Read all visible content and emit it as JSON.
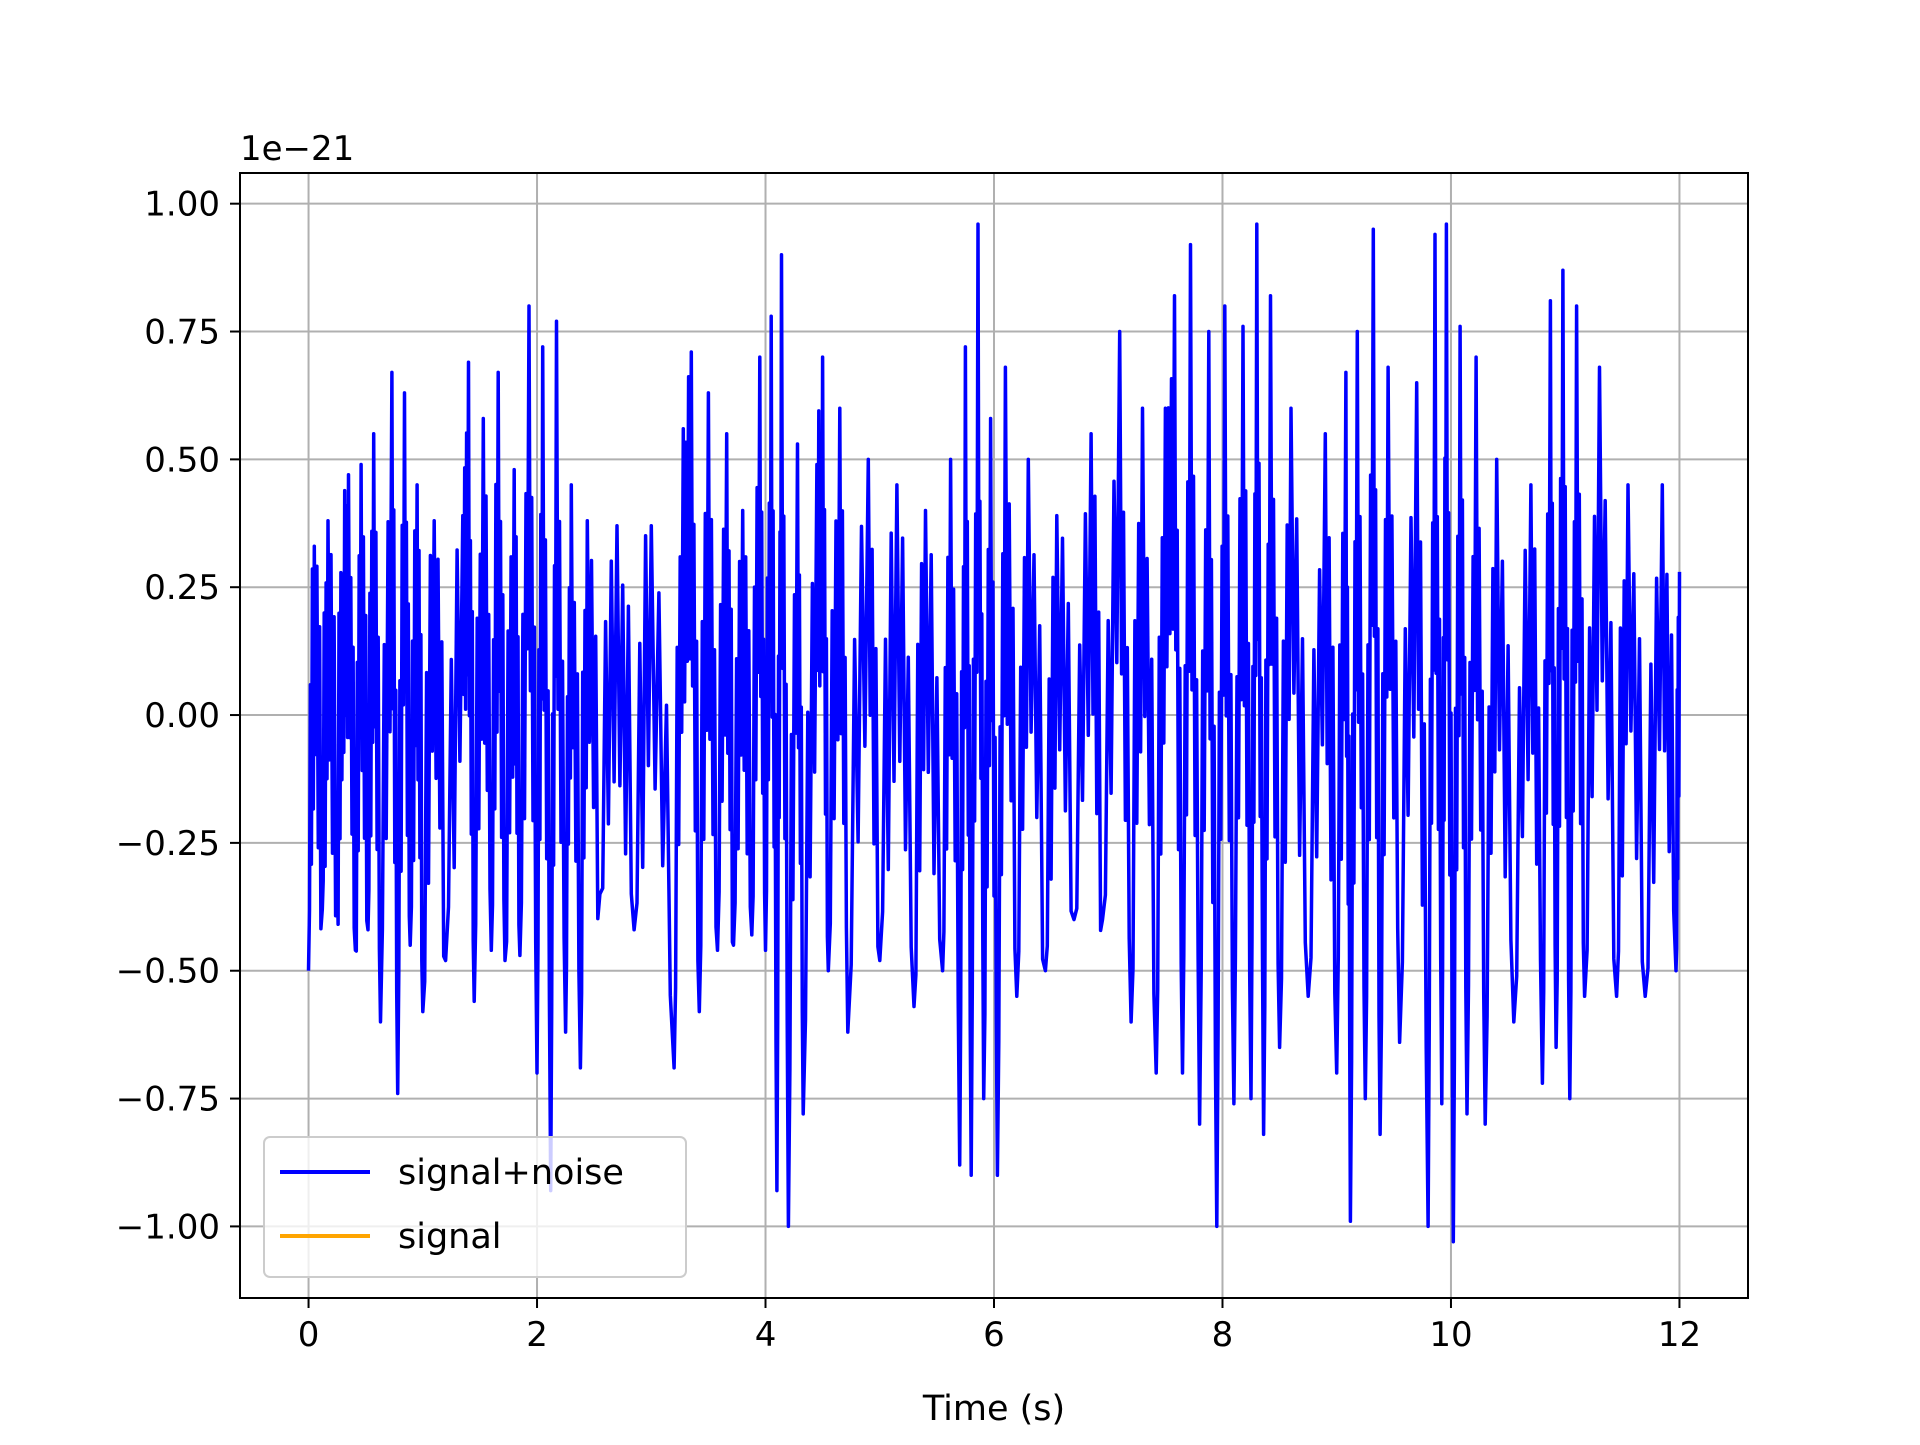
{
  "chart_data": {
    "type": "line",
    "title": "",
    "xlabel": "Time (s)",
    "ylabel": "",
    "y_scale_label": "1e−21",
    "xlim": [
      -0.6,
      12.6
    ],
    "ylim": [
      -1.14,
      1.06
    ],
    "x_ticks": [
      0,
      2,
      4,
      6,
      8,
      10,
      12
    ],
    "x_tick_labels": [
      "0",
      "2",
      "4",
      "6",
      "8",
      "10",
      "12"
    ],
    "y_ticks": [
      1.0,
      0.75,
      0.5,
      0.25,
      0.0,
      -0.25,
      -0.5,
      -0.75,
      -1.0
    ],
    "y_tick_labels": [
      "1.00",
      "0.75",
      "0.50",
      "0.25",
      "0.00",
      "−0.25",
      "−0.50",
      "−0.75",
      "−1.00"
    ],
    "grid": true,
    "legend_position": "lower-left",
    "duration": 12,
    "series": [
      {
        "name": "signal+noise",
        "color": "#0000ff",
        "peaks": [
          [
            0.0,
            -0.5
          ],
          [
            0.05,
            0.33
          ],
          [
            0.12,
            -0.38
          ],
          [
            0.17,
            0.38
          ],
          [
            0.25,
            -0.29
          ],
          [
            0.3,
            0.25
          ],
          [
            0.35,
            0.47
          ],
          [
            0.41,
            -0.46
          ],
          [
            0.46,
            0.49
          ],
          [
            0.52,
            -0.42
          ],
          [
            0.57,
            0.55
          ],
          [
            0.63,
            -0.6
          ],
          [
            0.73,
            0.67
          ],
          [
            0.78,
            -0.74
          ],
          [
            0.84,
            0.63
          ],
          [
            0.89,
            -0.45
          ],
          [
            0.95,
            0.45
          ],
          [
            1.0,
            -0.58
          ],
          [
            1.1,
            0.38
          ],
          [
            1.2,
            -0.48
          ],
          [
            1.35,
            0.39
          ],
          [
            1.4,
            0.69
          ],
          [
            1.45,
            -0.56
          ],
          [
            1.53,
            0.58
          ],
          [
            1.6,
            -0.46
          ],
          [
            1.66,
            0.67
          ],
          [
            1.72,
            -0.48
          ],
          [
            1.8,
            0.48
          ],
          [
            1.85,
            -0.47
          ],
          [
            1.93,
            0.8
          ],
          [
            2.0,
            -0.7
          ],
          [
            2.05,
            0.72
          ],
          [
            2.12,
            -0.93
          ],
          [
            2.17,
            0.77
          ],
          [
            2.25,
            -0.62
          ],
          [
            2.3,
            0.45
          ],
          [
            2.38,
            -0.69
          ],
          [
            2.44,
            0.38
          ],
          [
            2.55,
            -0.35
          ],
          [
            2.7,
            0.37
          ],
          [
            2.85,
            -0.42
          ],
          [
            3.0,
            0.37
          ],
          [
            3.2,
            -0.69
          ],
          [
            3.28,
            0.56
          ],
          [
            3.35,
            0.71
          ],
          [
            3.42,
            -0.58
          ],
          [
            3.5,
            0.63
          ],
          [
            3.58,
            -0.46
          ],
          [
            3.66,
            0.55
          ],
          [
            3.72,
            -0.45
          ],
          [
            3.8,
            0.4
          ],
          [
            3.88,
            -0.43
          ],
          [
            3.95,
            0.7
          ],
          [
            4.0,
            -0.46
          ],
          [
            4.05,
            0.78
          ],
          [
            4.1,
            -0.93
          ],
          [
            4.14,
            0.9
          ],
          [
            4.2,
            -1.0
          ],
          [
            4.28,
            0.53
          ],
          [
            4.33,
            -0.78
          ],
          [
            4.45,
            0.49
          ],
          [
            4.5,
            0.7
          ],
          [
            4.55,
            -0.5
          ],
          [
            4.65,
            0.6
          ],
          [
            4.72,
            -0.62
          ],
          [
            4.9,
            0.5
          ],
          [
            5.0,
            -0.48
          ],
          [
            5.15,
            0.45
          ],
          [
            5.3,
            -0.57
          ],
          [
            5.4,
            0.4
          ],
          [
            5.55,
            -0.5
          ],
          [
            5.62,
            0.5
          ],
          [
            5.7,
            -0.88
          ],
          [
            5.75,
            0.72
          ],
          [
            5.8,
            -0.9
          ],
          [
            5.86,
            0.96
          ],
          [
            5.91,
            -0.75
          ],
          [
            5.97,
            0.58
          ],
          [
            6.03,
            -0.9
          ],
          [
            6.1,
            0.68
          ],
          [
            6.2,
            -0.55
          ],
          [
            6.3,
            0.5
          ],
          [
            6.45,
            -0.5
          ],
          [
            6.55,
            0.39
          ],
          [
            6.7,
            -0.4
          ],
          [
            6.85,
            0.55
          ],
          [
            6.95,
            -0.4
          ],
          [
            7.1,
            0.75
          ],
          [
            7.2,
            -0.6
          ],
          [
            7.3,
            0.6
          ],
          [
            7.42,
            -0.7
          ],
          [
            7.5,
            0.6
          ],
          [
            7.58,
            0.82
          ],
          [
            7.65,
            -0.7
          ],
          [
            7.72,
            0.92
          ],
          [
            7.8,
            -0.8
          ],
          [
            7.88,
            0.75
          ],
          [
            7.95,
            -1.0
          ],
          [
            8.02,
            0.8
          ],
          [
            8.1,
            -0.76
          ],
          [
            8.18,
            0.76
          ],
          [
            8.25,
            -0.75
          ],
          [
            8.3,
            0.96
          ],
          [
            8.36,
            -0.82
          ],
          [
            8.42,
            0.82
          ],
          [
            8.5,
            -0.65
          ],
          [
            8.6,
            0.6
          ],
          [
            8.75,
            -0.55
          ],
          [
            8.9,
            0.55
          ],
          [
            9.0,
            -0.7
          ],
          [
            9.08,
            0.67
          ],
          [
            9.12,
            -0.99
          ],
          [
            9.18,
            0.75
          ],
          [
            9.25,
            -0.75
          ],
          [
            9.32,
            0.95
          ],
          [
            9.38,
            -0.82
          ],
          [
            9.45,
            0.68
          ],
          [
            9.55,
            -0.64
          ],
          [
            9.7,
            0.65
          ],
          [
            9.8,
            -1.0
          ],
          [
            9.86,
            0.94
          ],
          [
            9.92,
            -0.76
          ],
          [
            9.96,
            0.96
          ],
          [
            10.02,
            -1.03
          ],
          [
            10.08,
            0.76
          ],
          [
            10.14,
            -0.78
          ],
          [
            10.22,
            0.7
          ],
          [
            10.3,
            -0.8
          ],
          [
            10.4,
            0.5
          ],
          [
            10.55,
            -0.6
          ],
          [
            10.7,
            0.45
          ],
          [
            10.8,
            -0.72
          ],
          [
            10.87,
            0.81
          ],
          [
            10.92,
            -0.65
          ],
          [
            10.98,
            0.87
          ],
          [
            11.04,
            -0.75
          ],
          [
            11.1,
            0.8
          ],
          [
            11.17,
            -0.55
          ],
          [
            11.3,
            0.68
          ],
          [
            11.45,
            -0.55
          ],
          [
            11.55,
            0.45
          ],
          [
            11.7,
            -0.55
          ],
          [
            11.85,
            0.45
          ],
          [
            11.97,
            -0.5
          ],
          [
            12.0,
            0.28
          ]
        ]
      },
      {
        "name": "signal",
        "color": "#ffa500",
        "peaks": []
      }
    ]
  }
}
